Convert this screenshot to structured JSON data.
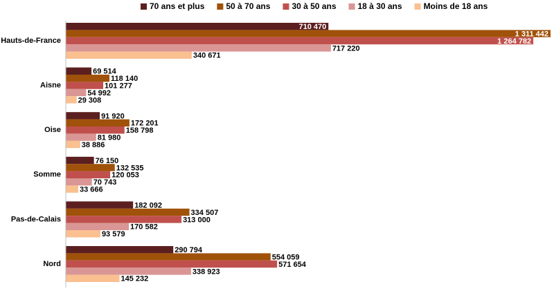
{
  "chart_data": {
    "type": "bar",
    "orientation": "horizontal",
    "categories": [
      "Hauts-de-France",
      "Aisne",
      "Oise",
      "Somme",
      "Pas-de-Calais",
      "Nord"
    ],
    "series": [
      {
        "name": "70 ans et plus",
        "color": "#5c1f1f",
        "values": [
          710470,
          69514,
          91920,
          76150,
          182092,
          290794
        ],
        "value_labels": [
          "710 470",
          "69 514",
          "91 920",
          "76 150",
          "182 092",
          "290 794"
        ]
      },
      {
        "name": "50 à 70 ans",
        "color": "#a0520a",
        "values": [
          1311442,
          118140,
          172201,
          132535,
          334507,
          554059
        ],
        "value_labels": [
          "1 311 442",
          "118 140",
          "172 201",
          "132 535",
          "334 507",
          "554 059"
        ]
      },
      {
        "name": "30 à 50 ans",
        "color": "#c0504d",
        "values": [
          1264782,
          101277,
          158798,
          120053,
          313000,
          571654
        ],
        "value_labels": [
          "1 264 782",
          "101 277",
          "158 798",
          "120 053",
          "313 000",
          "571 654"
        ]
      },
      {
        "name": "18 à 30 ans",
        "color": "#d99694",
        "values": [
          717220,
          54992,
          81980,
          70743,
          170582,
          338923
        ],
        "value_labels": [
          "717 220",
          "54 992",
          "81 980",
          "70 743",
          "170 582",
          "338 923"
        ]
      },
      {
        "name": "Moins de 18 ans",
        "color": "#fac090",
        "values": [
          340671,
          29308,
          38886,
          33666,
          93579,
          145232
        ],
        "value_labels": [
          "340 671",
          "29 308",
          "38 886",
          "33 666",
          "93 579",
          "145 232"
        ]
      }
    ],
    "xlim": [
      0,
      1311442
    ],
    "legend": "top"
  }
}
